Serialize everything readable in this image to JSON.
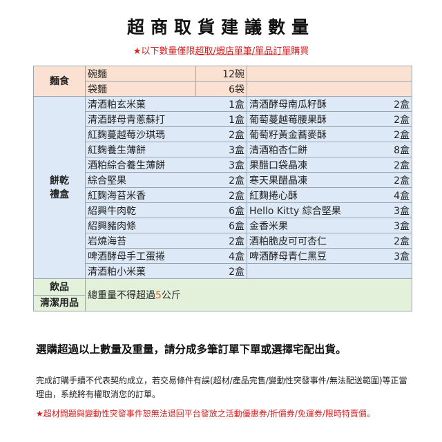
{
  "title": "超商取貨建議數量",
  "subtitle": {
    "prefix": "★以下數量僅限",
    "underlined": "超取/蝦店單筆/單品訂單",
    "suffix": "購買"
  },
  "colors": {
    "noodle_bg": "#fbe1d1",
    "snack_bg": "#dde9f6",
    "drink_bg": "#e3f1da",
    "alert_red": "#d62020",
    "highlight_orange": "#e05a2a"
  },
  "noodles": {
    "category": "麵食",
    "items": [
      {
        "name": "碗麵",
        "qty": "12碗"
      },
      {
        "name": "袋麵",
        "qty": "6袋"
      }
    ]
  },
  "snacks": {
    "category_line1": "餅乾",
    "category_line2": "禮盒",
    "rows": [
      [
        {
          "name": "清酒粕玄米菓",
          "qty": "1盒"
        },
        {
          "name": "清酒酵母南瓜籽酥",
          "qty": "2盒"
        }
      ],
      [
        {
          "name": "清酒酵母青蔥蘇打",
          "qty": "1盒"
        },
        {
          "name": "葡萄蔓越莓腰果酥",
          "qty": "2盒"
        }
      ],
      [
        {
          "name": "紅麴蔓越莓沙琪瑪",
          "qty": "2盒"
        },
        {
          "name": "葡萄籽黃金蕎麥酥",
          "qty": "2盒"
        }
      ],
      [
        {
          "name": "紅麴養生薄餅",
          "qty": "3盒"
        },
        {
          "name": "清酒粕杏仁餅",
          "qty": "8盒"
        }
      ],
      [
        {
          "name": "酒粕綜合養生薄餅",
          "qty": "3盒"
        },
        {
          "name": "果醋口袋晶凍",
          "qty": "2盒"
        }
      ],
      [
        {
          "name": "綜合堅果",
          "qty": "2盒"
        },
        {
          "name": "寒天果醋晶凍",
          "qty": "2盒"
        }
      ],
      [
        {
          "name": "紅麴海苔米香",
          "qty": "2盒"
        },
        {
          "name": "紅麴捲心酥",
          "qty": "4盒"
        }
      ],
      [
        {
          "name": "紹興牛肉乾",
          "qty": "6盒"
        },
        {
          "name": "Hello Kitty 綜合堅果",
          "qty": "3盒"
        }
      ],
      [
        {
          "name": "紹興豬肉條",
          "qty": "6盒"
        },
        {
          "name": "金香米果",
          "qty": "3盒"
        }
      ],
      [
        {
          "name": "岩燒海苔",
          "qty": "2盒"
        },
        {
          "name": "酒粕脆皮可可杏仁",
          "qty": "2盒"
        }
      ],
      [
        {
          "name": "啤酒酵母手工蛋捲",
          "qty": "4盒"
        },
        {
          "name": "啤酒酵母青仁黑豆",
          "qty": "3盒"
        }
      ],
      [
        {
          "name": "清酒粕小米菓",
          "qty": "2盒"
        },
        null
      ]
    ]
  },
  "drinks": {
    "category1": "飲品",
    "category2": "清潔用品",
    "limit_prefix": "總重量不得超過",
    "limit_value": "5",
    "limit_suffix": "公斤"
  },
  "notes": {
    "bold": "選購超過以上數量及重量，請分成多筆訂單下單或選擇宅配出貨。",
    "terms": "完成訂購手續不代表契約成立，若交易條件有誤(超材/產品完售/變動性突發事件/無法配送範圍)等正當理由，系統將有權取消您的訂單。",
    "warning": "★超材問題與變動性突發事件恕無法退回平台發放之活動優惠券/折價券/免運券/限時特賣價。"
  }
}
